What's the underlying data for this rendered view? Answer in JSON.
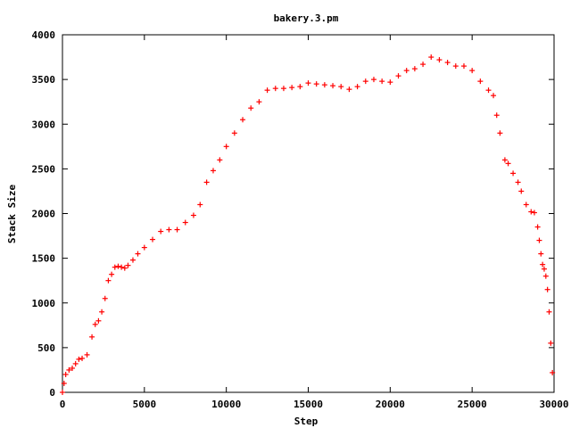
{
  "chart_data": {
    "type": "scatter",
    "title": "bakery.3.pm",
    "xlabel": "Step",
    "ylabel": "Stack Size",
    "xlim": [
      0,
      30000
    ],
    "ylim": [
      0,
      4000
    ],
    "xticks": [
      0,
      5000,
      10000,
      15000,
      20000,
      25000,
      30000
    ],
    "yticks": [
      0,
      500,
      1000,
      1500,
      2000,
      2500,
      3000,
      3500,
      4000
    ],
    "grid": false,
    "legend": "none",
    "marker": "plus",
    "color": "#ff0000",
    "series": [
      {
        "x": [
          0,
          100,
          200,
          400,
          600,
          800,
          1000,
          1200,
          1500,
          1800,
          2000,
          2200,
          2400,
          2600,
          2800,
          3000,
          3200,
          3400,
          3600,
          3800,
          4000,
          4300,
          4600,
          5000,
          5500,
          6000,
          6500,
          7000,
          7500,
          8000,
          8400,
          8800,
          9200,
          9600,
          10000,
          10500,
          11000,
          11500,
          12000,
          12500,
          13000,
          13500,
          14000,
          14500,
          15000,
          15500,
          16000,
          16500,
          17000,
          17500,
          18000,
          18500,
          19000,
          19500,
          20000,
          20500,
          21000,
          21500,
          22000,
          22500,
          23000,
          23500,
          24000,
          24500,
          25000,
          25500,
          26000,
          26300,
          26500,
          26700,
          27000,
          27200,
          27500,
          27800,
          28000,
          28300,
          28600,
          28800,
          29000,
          29100,
          29200,
          29300,
          29400,
          29500,
          29600,
          29700,
          29800,
          29900
        ],
        "values": [
          0,
          100,
          200,
          250,
          270,
          320,
          370,
          380,
          420,
          620,
          760,
          800,
          900,
          1050,
          1250,
          1320,
          1400,
          1410,
          1400,
          1390,
          1420,
          1480,
          1550,
          1620,
          1710,
          1800,
          1820,
          1820,
          1900,
          1980,
          2100,
          2350,
          2480,
          2600,
          2750,
          2900,
          3050,
          3180,
          3250,
          3380,
          3400,
          3400,
          3410,
          3420,
          3460,
          3450,
          3440,
          3430,
          3420,
          3390,
          3420,
          3480,
          3500,
          3480,
          3470,
          3540,
          3600,
          3620,
          3670,
          3750,
          3720,
          3690,
          3650,
          3650,
          3600,
          3480,
          3380,
          3320,
          3100,
          2900,
          2600,
          2560,
          2450,
          2350,
          2250,
          2100,
          2020,
          2010,
          1850,
          1700,
          1550,
          1430,
          1380,
          1300,
          1150,
          900,
          550,
          220
        ]
      }
    ]
  }
}
